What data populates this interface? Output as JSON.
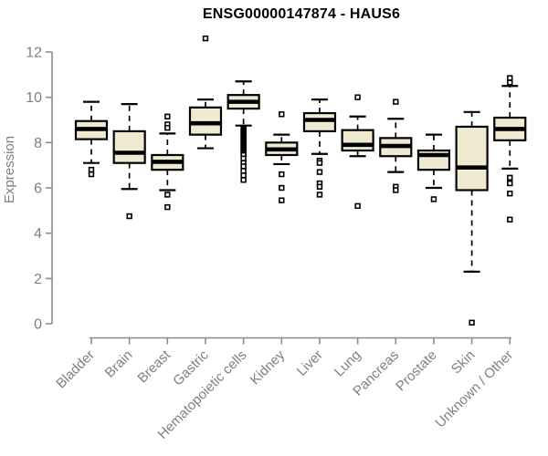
{
  "chart_data": {
    "type": "boxplot",
    "title": "ENSG00000147874 - HAUS6",
    "ylabel": "Expression",
    "ylim": [
      0,
      12
    ],
    "yticks": [
      0,
      2,
      4,
      6,
      8,
      10,
      12
    ],
    "grid": false,
    "legend": "none",
    "box_fill_color": "#f0ead2",
    "box_line_color": "#000000",
    "axis_color": "#8c8c8c",
    "label_color": "#808080",
    "title_color": "#000000",
    "categories": [
      "Bladder",
      "Brain",
      "Breast",
      "Gastric",
      "Hematopoietic cells",
      "Kidney",
      "Liver",
      "Lung",
      "Pancreas",
      "Prostate",
      "Skin",
      "Unknown / Other"
    ],
    "boxes": [
      {
        "label": "Bladder",
        "whislo": 7.1,
        "q1": 8.15,
        "med": 8.6,
        "q3": 8.95,
        "whishi": 9.8,
        "outliers": [
          6.8,
          6.6
        ]
      },
      {
        "label": "Brain",
        "whislo": 5.95,
        "q1": 7.1,
        "med": 7.55,
        "q3": 8.5,
        "whishi": 9.7,
        "outliers": [
          4.75
        ]
      },
      {
        "label": "Breast",
        "whislo": 5.9,
        "q1": 6.8,
        "med": 7.15,
        "q3": 7.45,
        "whishi": 8.4,
        "outliers": [
          9.15,
          8.8,
          8.65,
          5.7,
          5.15
        ]
      },
      {
        "label": "Gastric",
        "whislo": 7.75,
        "q1": 8.35,
        "med": 8.85,
        "q3": 9.55,
        "whishi": 9.9,
        "outliers": [
          12.6
        ]
      },
      {
        "label": "Hematopoietic cells",
        "whislo": 8.75,
        "q1": 9.5,
        "med": 9.8,
        "q3": 10.1,
        "whishi": 10.7,
        "outliers": [
          8.65,
          8.59,
          8.53,
          8.47,
          8.41,
          8.35,
          8.29,
          8.23,
          8.17,
          8.11,
          8.05,
          7.99,
          7.93,
          7.87,
          7.81,
          7.75,
          7.69,
          7.63,
          7.57,
          7.51,
          7.45,
          7.3,
          7.1,
          6.95,
          6.75,
          6.55,
          6.35
        ]
      },
      {
        "label": "Kidney",
        "whislo": 7.05,
        "q1": 7.45,
        "med": 7.7,
        "q3": 8.0,
        "whishi": 8.35,
        "outliers": [
          9.25,
          6.6,
          6.0,
          5.45
        ]
      },
      {
        "label": "Liver",
        "whislo": 7.5,
        "q1": 8.5,
        "med": 9.0,
        "q3": 9.3,
        "whishi": 9.9,
        "outliers": [
          7.2,
          7.1,
          6.7,
          6.2,
          6.05,
          5.7
        ]
      },
      {
        "label": "Lung",
        "whislo": 7.4,
        "q1": 7.65,
        "med": 7.9,
        "q3": 8.55,
        "whishi": 9.15,
        "outliers": [
          10.0,
          5.2
        ]
      },
      {
        "label": "Pancreas",
        "whislo": 6.7,
        "q1": 7.4,
        "med": 7.85,
        "q3": 8.2,
        "whishi": 9.05,
        "outliers": [
          9.8,
          6.05,
          5.9
        ]
      },
      {
        "label": "Prostate",
        "whislo": 6.0,
        "q1": 6.8,
        "med": 7.45,
        "q3": 7.65,
        "whishi": 8.35,
        "outliers": [
          5.5
        ]
      },
      {
        "label": "Skin",
        "whislo": 2.3,
        "q1": 5.9,
        "med": 6.9,
        "q3": 8.7,
        "whishi": 9.35,
        "outliers": [
          0.05
        ]
      },
      {
        "label": "Unknown / Other",
        "whislo": 6.85,
        "q1": 8.1,
        "med": 8.6,
        "q3": 9.1,
        "whishi": 10.5,
        "outliers": [
          10.85,
          10.65,
          6.45,
          6.2,
          5.75,
          4.6
        ]
      }
    ]
  }
}
